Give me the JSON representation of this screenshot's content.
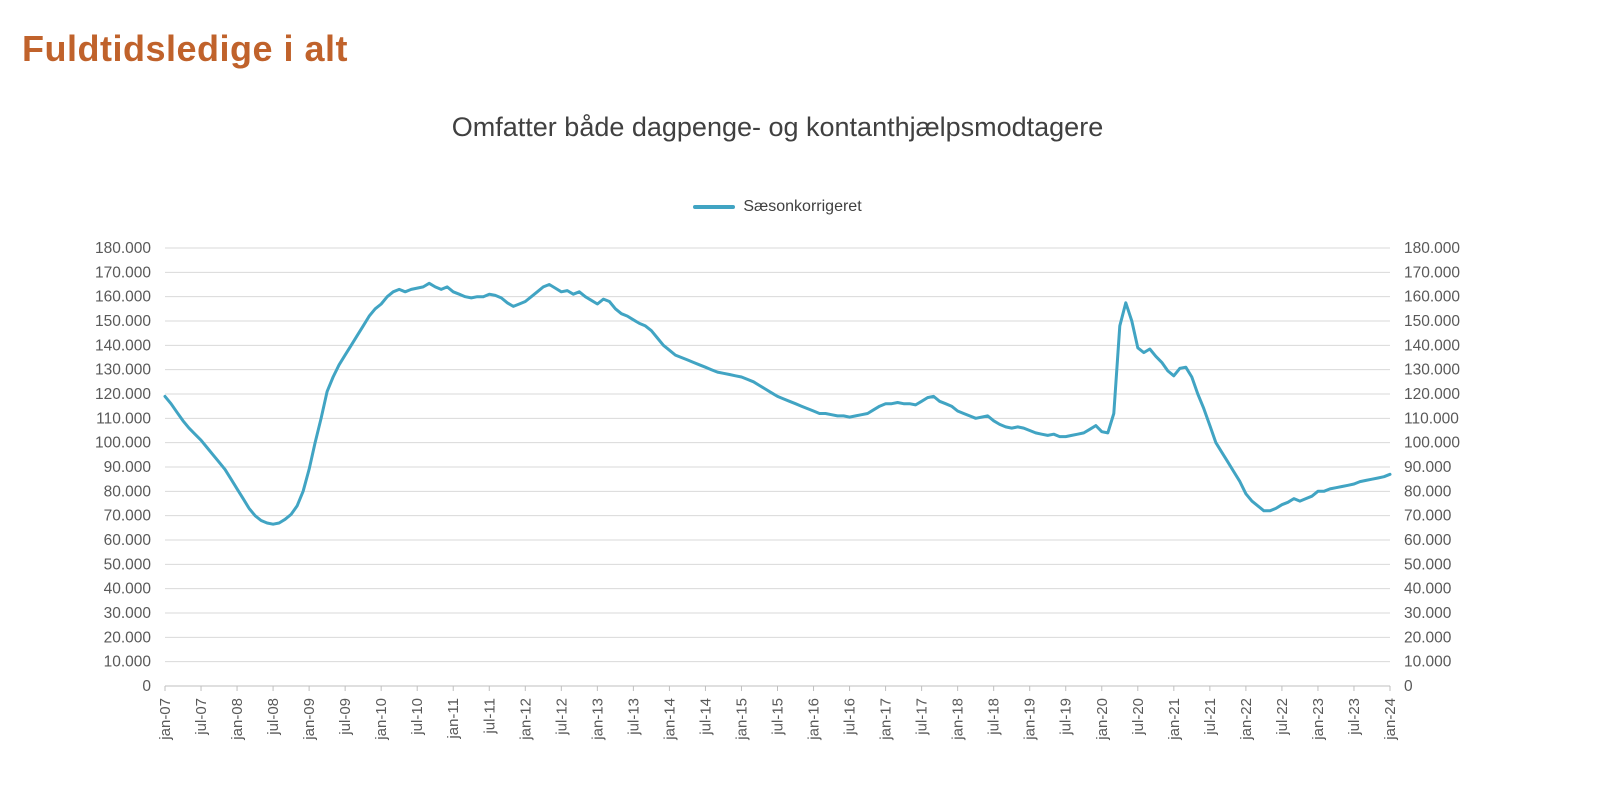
{
  "page": {
    "title": "Fuldtidsledige i alt"
  },
  "chart": {
    "subtitle": "Omfatter både dagpenge- og kontanthjælpsmodtagere",
    "legend_label": "Sæsonkorrigeret",
    "series_color": "#41a4c3",
    "grid_color": "#d9d9d9",
    "axis_color": "#bfbfbf",
    "label_color": "#595959",
    "title_color": "#c0622b"
  },
  "chart_data": {
    "type": "line",
    "title": "Omfatter både dagpenge- og kontanthjælpsmodtagere",
    "frequency": "monthly",
    "x_start": "jan-07",
    "x_end": "jan-24",
    "x_tick_labels": [
      "jan-07",
      "jul-07",
      "jan-08",
      "jul-08",
      "jan-09",
      "jul-09",
      "jan-10",
      "jul-10",
      "jan-11",
      "jul-11",
      "jan-12",
      "jul-12",
      "jan-13",
      "jul-13",
      "jan-14",
      "jul-14",
      "jan-15",
      "jul-15",
      "jan-16",
      "jul-16",
      "jan-17",
      "jul-17",
      "jan-18",
      "jul-18",
      "jan-19",
      "jul-19",
      "jan-20",
      "jul-20",
      "jan-21",
      "jul-21",
      "jan-22",
      "jul-22",
      "jan-23",
      "jul-23",
      "jan-24"
    ],
    "ylim": [
      0,
      180000
    ],
    "y_ticks": [
      0,
      10000,
      20000,
      30000,
      40000,
      50000,
      60000,
      70000,
      80000,
      90000,
      100000,
      110000,
      120000,
      130000,
      140000,
      150000,
      160000,
      170000,
      180000
    ],
    "y_tick_labels": [
      "0",
      "10.000",
      "20.000",
      "30.000",
      "40.000",
      "50.000",
      "60.000",
      "70.000",
      "80.000",
      "90.000",
      "100.000",
      "110.000",
      "120.000",
      "130.000",
      "140.000",
      "150.000",
      "160.000",
      "170.000",
      "180.000"
    ],
    "grid": true,
    "legend_position": "top-center",
    "series": [
      {
        "name": "Sæsonkorrigeret",
        "color": "#41a4c3",
        "values": [
          119000,
          116000,
          112500,
          109000,
          106000,
          103500,
          101000,
          98000,
          95000,
          92000,
          89000,
          85000,
          81000,
          77000,
          73000,
          70000,
          68000,
          67000,
          66500,
          67000,
          68500,
          70500,
          74000,
          80000,
          89000,
          100000,
          110000,
          121000,
          127000,
          132000,
          136000,
          140000,
          144000,
          148000,
          152000,
          155000,
          157000,
          160000,
          162000,
          163000,
          162000,
          163000,
          163500,
          164000,
          165500,
          164000,
          163000,
          164000,
          162000,
          161000,
          160000,
          159500,
          160000,
          160000,
          161000,
          160500,
          159500,
          157500,
          156000,
          157000,
          158000,
          160000,
          162000,
          164000,
          165000,
          163500,
          162000,
          162500,
          161000,
          162000,
          160000,
          158500,
          157000,
          159000,
          158000,
          155000,
          153000,
          152000,
          150500,
          149000,
          148000,
          146000,
          143000,
          140000,
          138000,
          136000,
          135000,
          134000,
          133000,
          132000,
          131000,
          130000,
          129000,
          128500,
          128000,
          127500,
          127000,
          126000,
          125000,
          123500,
          122000,
          120500,
          119000,
          118000,
          117000,
          116000,
          115000,
          114000,
          113000,
          112000,
          112000,
          111500,
          111000,
          111000,
          110500,
          111000,
          111500,
          112000,
          113500,
          115000,
          116000,
          116000,
          116500,
          116000,
          116000,
          115500,
          117000,
          118500,
          119000,
          117000,
          116000,
          115000,
          113000,
          112000,
          111000,
          110000,
          110500,
          111000,
          109000,
          107500,
          106500,
          106000,
          106500,
          106000,
          105000,
          104000,
          103500,
          103000,
          103500,
          102500,
          102500,
          103000,
          103500,
          104000,
          105500,
          107000,
          104500,
          104000,
          112000,
          148000,
          157500,
          150000,
          139000,
          137000,
          138500,
          135500,
          133000,
          129500,
          127500,
          130500,
          131000,
          127000,
          120000,
          114000,
          107000,
          100000,
          96000,
          92000,
          88000,
          84000,
          79000,
          76000,
          74000,
          72000,
          72000,
          73000,
          74500,
          75500,
          77000,
          76000,
          77000,
          78000,
          80000,
          80000,
          81000,
          81500,
          82000,
          82500,
          83000,
          84000,
          84500,
          85000,
          85500,
          86000,
          87000
        ]
      }
    ]
  }
}
